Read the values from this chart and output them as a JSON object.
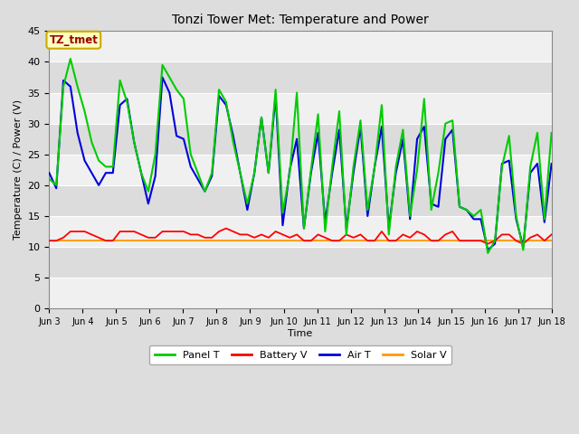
{
  "title": "Tonzi Tower Met: Temperature and Power",
  "ylabel": "Temperature (C) / Power (V)",
  "xlabel": "Time",
  "annotation": "TZ_tmet",
  "ylim": [
    0,
    45
  ],
  "yticks": [
    0,
    5,
    10,
    15,
    20,
    25,
    30,
    35,
    40,
    45
  ],
  "x_start_day": 3,
  "x_end_day": 18,
  "xtick_positions": [
    3,
    4,
    5,
    6,
    7,
    8,
    9,
    10,
    11,
    12,
    13,
    14,
    15,
    16,
    17,
    18
  ],
  "xtick_labels": [
    "Jun 3",
    "Jun 4",
    "Jun 5",
    "Jun 6",
    "Jun 7",
    "Jun 8",
    "Jun 9",
    "Jun 10",
    "Jun 11",
    "Jun 12",
    "Jun 13",
    "Jun 14",
    "Jun 15",
    "Jun 16",
    "Jun 17",
    "Jun 18"
  ],
  "colors": {
    "panel_t": "#00CC00",
    "battery_v": "#FF0000",
    "air_t": "#0000DD",
    "solar_v": "#FF9900"
  },
  "band_colors": [
    "#F0F0F0",
    "#DCDCDC"
  ],
  "grid_color": "#FFFFFF",
  "bg_color": "#FFFFFF",
  "fig_bg": "#DDDDDD",
  "panel_t_data": [
    21.0,
    20.0,
    36.0,
    40.5,
    36.0,
    32.0,
    27.0,
    24.0,
    23.0,
    23.0,
    37.0,
    33.5,
    27.0,
    22.0,
    19.0,
    25.0,
    39.5,
    37.5,
    35.5,
    34.0,
    25.0,
    22.0,
    19.0,
    22.0,
    35.5,
    33.5,
    27.0,
    22.0,
    17.0,
    22.0,
    31.0,
    22.0,
    35.5,
    15.5,
    22.0,
    35.0,
    13.0,
    22.5,
    31.5,
    12.5,
    23.0,
    32.0,
    12.0,
    23.0,
    30.5,
    16.0,
    23.0,
    33.0,
    12.0,
    23.0,
    29.0,
    15.0,
    22.5,
    34.0,
    16.0,
    22.0,
    30.0,
    30.5,
    16.5,
    16.0,
    15.0,
    16.0,
    9.0,
    11.0,
    23.0,
    28.0,
    15.0,
    9.5,
    23.0,
    28.5,
    14.5,
    28.5
  ],
  "air_t_data": [
    22.0,
    19.5,
    37.0,
    36.0,
    28.5,
    24.0,
    22.0,
    20.0,
    22.0,
    22.0,
    33.0,
    34.0,
    27.0,
    22.0,
    17.0,
    21.5,
    37.5,
    35.0,
    28.0,
    27.5,
    23.0,
    21.0,
    19.0,
    21.5,
    34.5,
    33.0,
    28.0,
    22.0,
    16.0,
    22.0,
    31.0,
    22.0,
    34.5,
    13.5,
    22.5,
    27.5,
    13.0,
    22.0,
    28.5,
    14.0,
    22.0,
    29.0,
    13.0,
    22.0,
    29.5,
    15.0,
    23.0,
    29.5,
    13.0,
    22.0,
    27.5,
    14.5,
    27.5,
    29.5,
    17.0,
    16.5,
    27.5,
    29.0,
    16.5,
    16.0,
    14.5,
    14.5,
    9.5,
    10.5,
    23.5,
    24.0,
    14.5,
    10.0,
    22.0,
    23.5,
    14.0,
    23.5
  ],
  "battery_v_data": [
    11.0,
    11.0,
    11.5,
    12.5,
    12.5,
    12.5,
    12.0,
    11.5,
    11.0,
    11.0,
    12.5,
    12.5,
    12.5,
    12.0,
    11.5,
    11.5,
    12.5,
    12.5,
    12.5,
    12.5,
    12.0,
    12.0,
    11.5,
    11.5,
    12.5,
    13.0,
    12.5,
    12.0,
    12.0,
    11.5,
    12.0,
    11.5,
    12.5,
    12.0,
    11.5,
    12.0,
    11.0,
    11.0,
    12.0,
    11.5,
    11.0,
    11.0,
    12.0,
    11.5,
    12.0,
    11.0,
    11.0,
    12.5,
    11.0,
    11.0,
    12.0,
    11.5,
    12.5,
    12.0,
    11.0,
    11.0,
    12.0,
    12.5,
    11.0,
    11.0,
    11.0,
    11.0,
    10.5,
    11.0,
    12.0,
    12.0,
    11.0,
    10.5,
    11.5,
    12.0,
    11.0,
    12.0
  ],
  "solar_v_data": [
    11.0,
    11.0,
    11.0,
    11.0,
    11.0,
    11.0,
    11.0,
    11.0,
    11.0,
    11.0,
    11.0,
    11.0,
    11.0,
    11.0,
    11.0,
    11.0,
    11.0,
    11.0,
    11.0,
    11.0,
    11.0,
    11.0,
    11.0,
    11.0,
    11.0,
    11.0,
    11.0,
    11.0,
    11.0,
    11.0,
    11.0,
    11.0,
    11.0,
    11.0,
    11.0,
    11.0,
    11.0,
    11.0,
    11.0,
    11.0,
    11.0,
    11.0,
    11.0,
    11.0,
    11.0,
    11.0,
    11.0,
    11.0,
    11.0,
    11.0,
    11.0,
    11.0,
    11.0,
    11.0,
    11.0,
    11.0,
    11.0,
    11.0,
    11.0,
    11.0,
    11.0,
    11.0,
    11.0,
    11.0,
    11.0,
    11.0,
    11.0,
    11.0,
    11.0,
    11.0,
    11.0,
    11.0
  ]
}
